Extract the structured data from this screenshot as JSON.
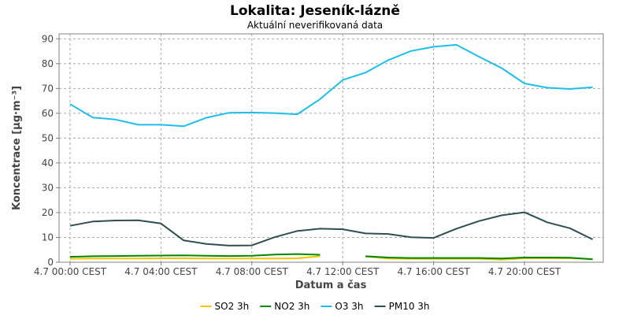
{
  "chart_data": {
    "type": "line",
    "title": "Lokalita: Jeseník-lázně",
    "subtitle": "Aktuální neverifikovaná data",
    "xlabel": "Datum a čas",
    "ylabel": "Koncentrace [µg·m⁻³]",
    "ylim": [
      0,
      92
    ],
    "yticks": [
      0,
      10,
      20,
      30,
      40,
      50,
      60,
      70,
      80,
      90
    ],
    "xlim": [
      0,
      24
    ],
    "xticks": [
      {
        "value": 0,
        "label": "4.7 00:00 CEST"
      },
      {
        "value": 4,
        "label": "4.7 04:00 CEST"
      },
      {
        "value": 8,
        "label": "4.7 08:00 CEST"
      },
      {
        "value": 12,
        "label": "4.7 12:00 CEST"
      },
      {
        "value": 16,
        "label": "4.7 16:00 CEST"
      },
      {
        "value": 20,
        "label": "4.7 20:00 CEST"
      }
    ],
    "grid": true,
    "legend_position": "bottom",
    "x": [
      0,
      1,
      2,
      3,
      4,
      5,
      6,
      7,
      8,
      9,
      10,
      11,
      12,
      13,
      14,
      15,
      16,
      17,
      18,
      19,
      20,
      21,
      22,
      23
    ],
    "series": [
      {
        "name": "SO2 3h",
        "color": "#f5c400",
        "values": [
          1.4,
          1.5,
          1.5,
          1.5,
          1.6,
          1.6,
          1.5,
          1.5,
          1.5,
          1.5,
          1.6,
          2.4,
          null,
          2.3,
          1.5,
          1.4,
          1.4,
          1.4,
          1.4,
          1.0,
          1.6,
          1.6,
          1.6,
          1.3
        ]
      },
      {
        "name": "NO2 3h",
        "color": "#008800",
        "values": [
          2.2,
          2.4,
          2.5,
          2.6,
          2.7,
          2.8,
          2.6,
          2.5,
          2.6,
          3.1,
          3.3,
          3.0,
          null,
          2.4,
          1.9,
          1.7,
          1.7,
          1.7,
          1.7,
          1.5,
          1.9,
          1.9,
          1.8,
          1.2
        ]
      },
      {
        "name": "O3 3h",
        "color": "#1ebeea",
        "values": [
          63.7,
          58.3,
          57.5,
          55.4,
          55.4,
          54.8,
          58.2,
          60.2,
          60.3,
          60.1,
          59.6,
          65.7,
          73.4,
          76.4,
          81.4,
          85.1,
          86.8,
          87.6,
          82.8,
          78.2,
          72.0,
          70.3,
          69.8,
          70.5
        ]
      },
      {
        "name": "PM10 3h",
        "color": "#2f4f4f",
        "values": [
          14.7,
          16.4,
          16.8,
          16.9,
          15.6,
          8.8,
          7.4,
          6.7,
          6.8,
          10.1,
          12.6,
          13.5,
          13.3,
          11.6,
          11.4,
          10.1,
          9.8,
          13.5,
          16.6,
          18.9,
          20.1,
          16.1,
          13.7,
          9.2
        ]
      }
    ]
  }
}
